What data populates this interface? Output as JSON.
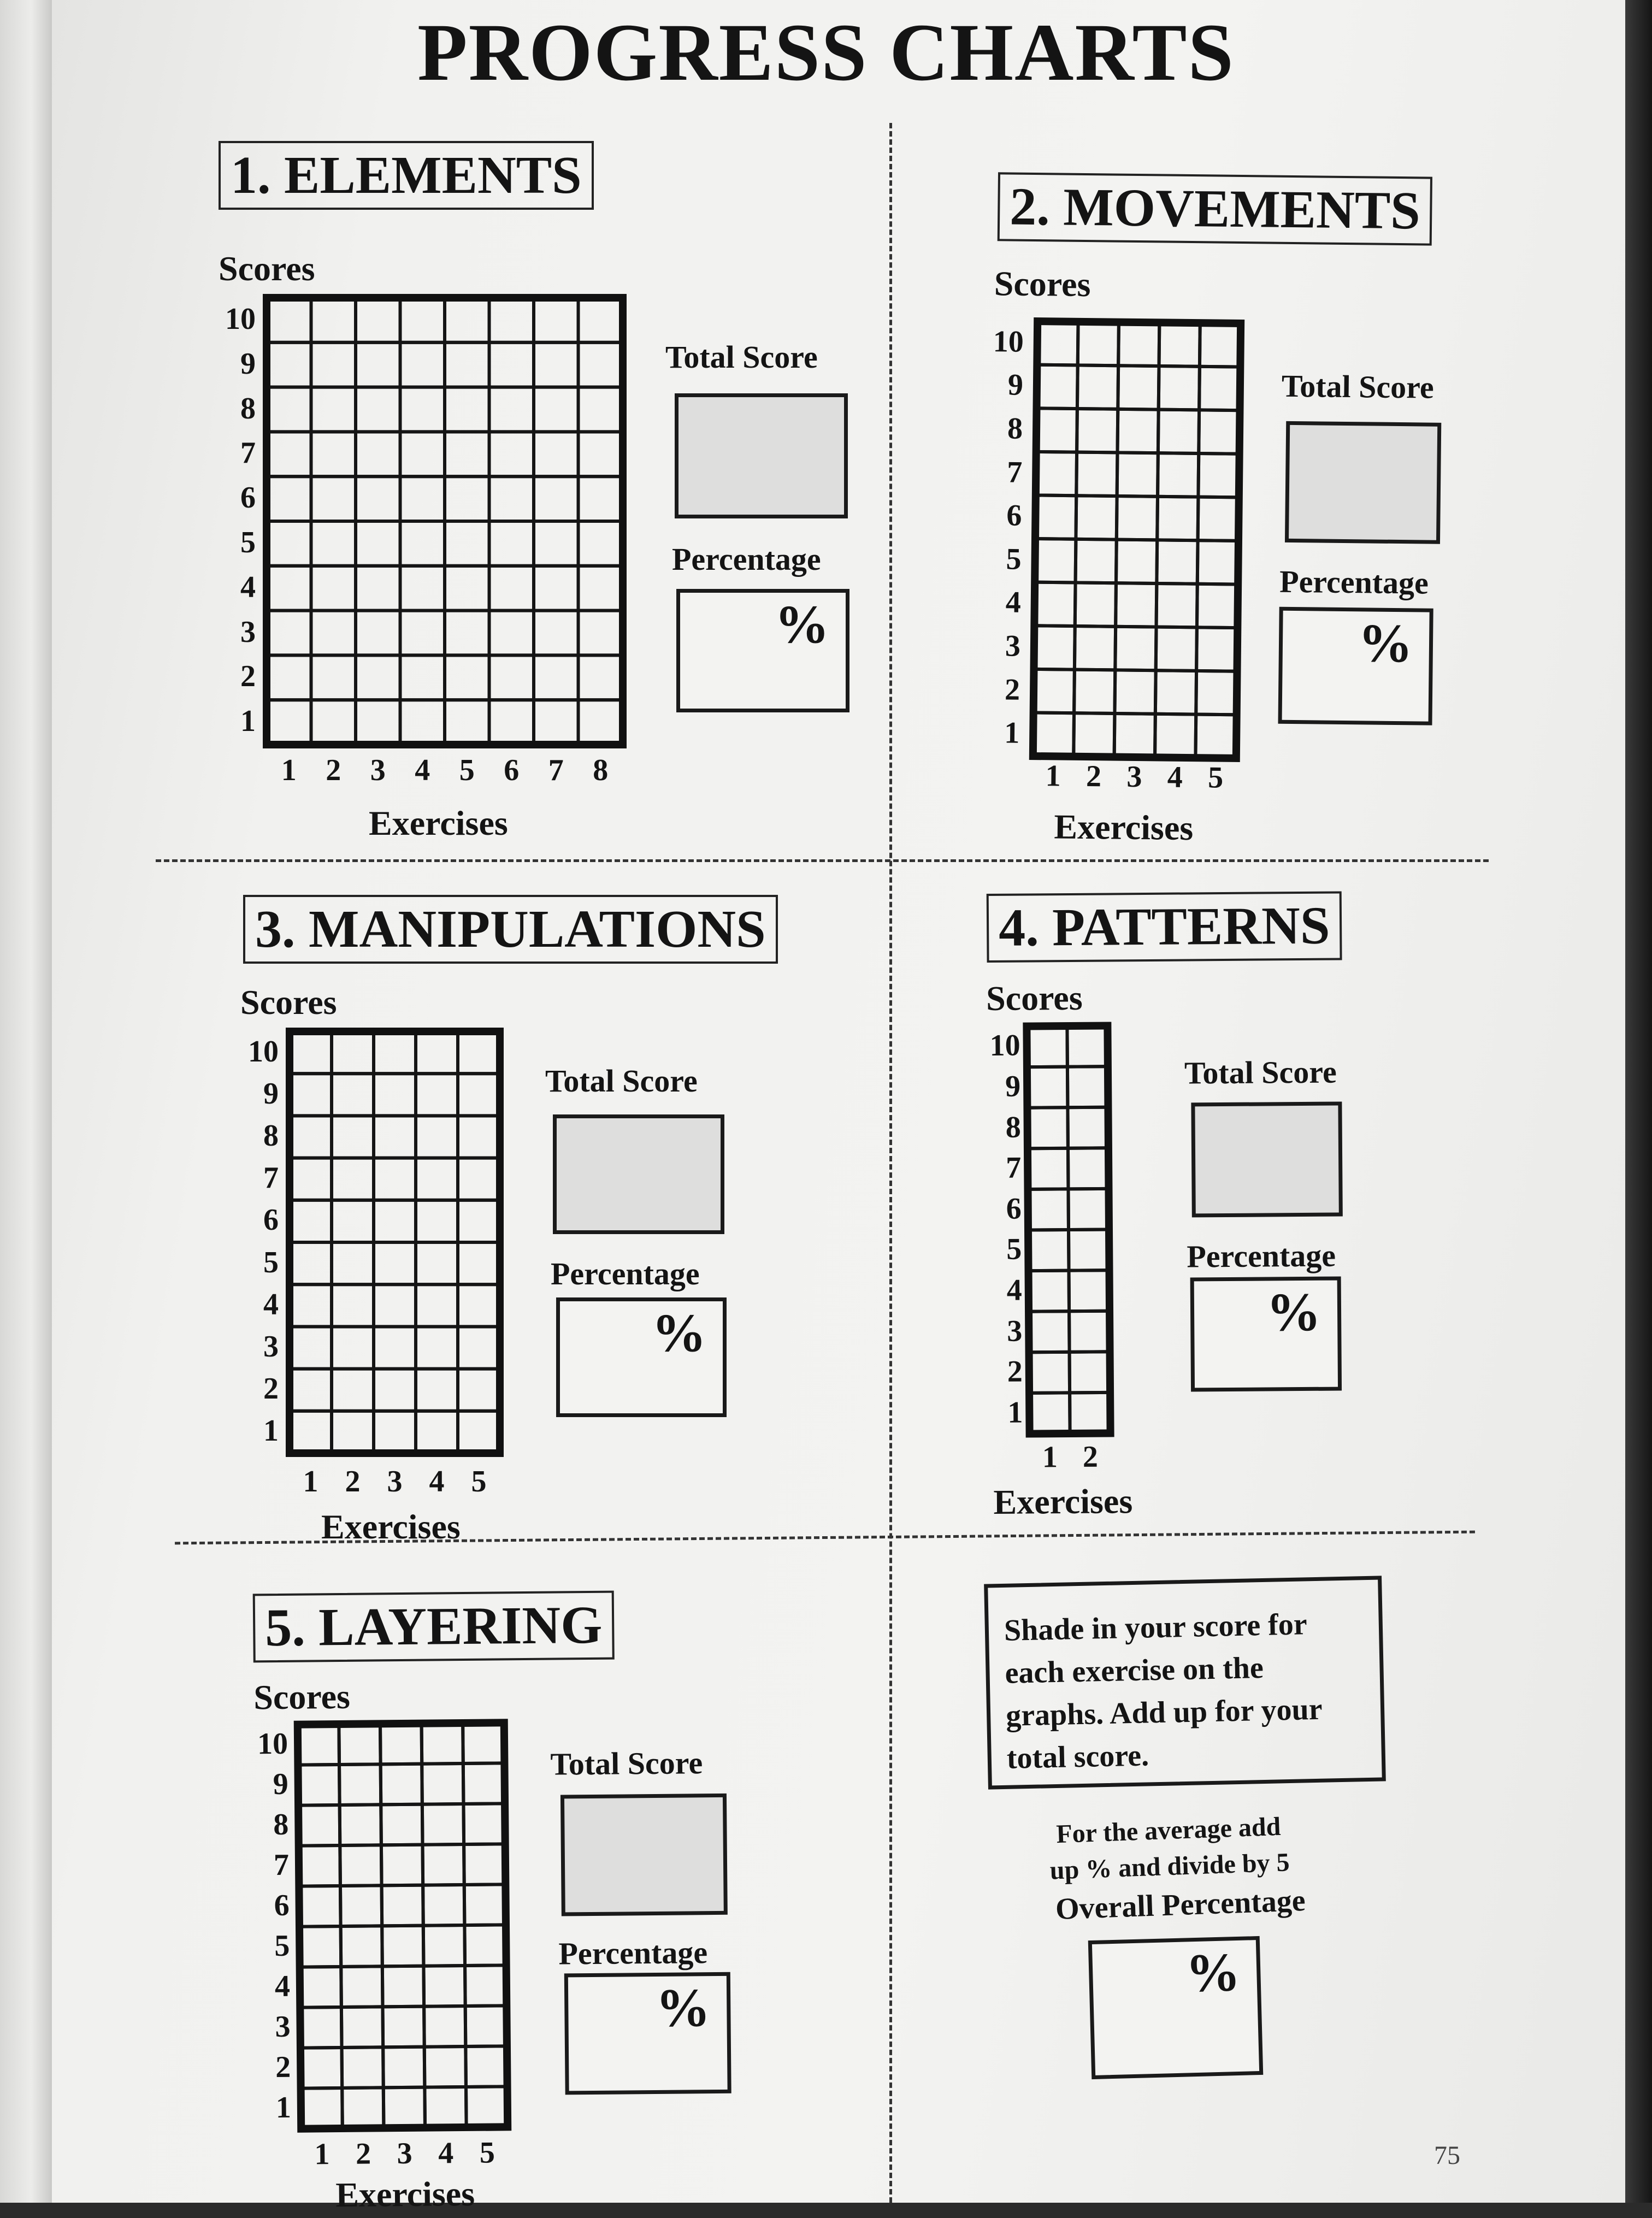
{
  "title": "PROGRESS CHARTS",
  "axis": {
    "scores_label": "Scores",
    "exercises_label": "Exercises",
    "y_ticks": [
      "10",
      "9",
      "8",
      "7",
      "6",
      "5",
      "4",
      "3",
      "2",
      "1"
    ]
  },
  "labels": {
    "total_score": "Total Score",
    "percentage": "Percentage",
    "percent_sign": "%"
  },
  "sections": [
    {
      "title": "1. ELEMENTS",
      "exercises": [
        "1",
        "2",
        "3",
        "4",
        "5",
        "6",
        "7",
        "8"
      ]
    },
    {
      "title": "2. MOVEMENTS",
      "exercises": [
        "1",
        "2",
        "3",
        "4",
        "5"
      ]
    },
    {
      "title": "3. MANIPULATIONS",
      "exercises": [
        "1",
        "2",
        "3",
        "4",
        "5"
      ]
    },
    {
      "title": "4. PATTERNS",
      "exercises": [
        "1",
        "2"
      ]
    },
    {
      "title": "5. LAYERING",
      "exercises": [
        "1",
        "2",
        "3",
        "4",
        "5"
      ]
    }
  ],
  "instructions": "Shade in your score for each exercise on the graphs.  Add up for your total score.",
  "average_note": {
    "line1": "For the average add",
    "line2": "up % and divide by 5"
  },
  "overall_percentage_label": "Overall Percentage",
  "page_number": "75"
}
